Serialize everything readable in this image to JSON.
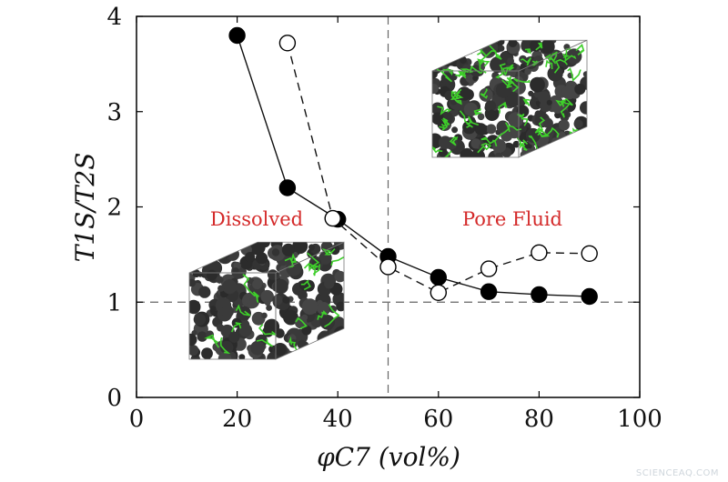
{
  "chart_data": {
    "type": "scatter",
    "xlabel": "φC7 (vol%)",
    "ylabel": "T1S/T2S",
    "xlim": [
      0,
      100
    ],
    "ylim": [
      0,
      4
    ],
    "xticks": [
      0,
      20,
      40,
      60,
      80,
      100
    ],
    "yticks": [
      0,
      1,
      2,
      3,
      4
    ],
    "grid": false,
    "reference_lines": [
      {
        "orientation": "horizontal",
        "value": 1,
        "style": "dashed"
      },
      {
        "orientation": "vertical",
        "value": 50,
        "style": "dashed"
      }
    ],
    "series": [
      {
        "marker": "filled-circle",
        "line": "solid",
        "x": [
          20,
          30,
          40,
          50,
          60,
          70,
          80,
          90
        ],
        "y": [
          3.8,
          2.2,
          1.87,
          1.48,
          1.26,
          1.11,
          1.08,
          1.06
        ]
      },
      {
        "marker": "open-circle",
        "line": "dashed",
        "x": [
          30,
          39,
          50,
          60,
          70,
          80,
          90
        ],
        "y": [
          3.72,
          1.88,
          1.37,
          1.1,
          1.35,
          1.52,
          1.51
        ]
      }
    ],
    "annotations": [
      {
        "text": "Dissolved",
        "color": "#d42a2a"
      },
      {
        "text": "Pore Fluid",
        "color": "#d42a2a"
      }
    ],
    "insets": [
      {
        "name": "dissolved-cube",
        "contents": "dark grey aggregate with sparse green chains"
      },
      {
        "name": "pore-fluid-cube",
        "contents": "dark grey aggregate with dense green chains"
      }
    ]
  },
  "watermark": "SCIENCEAQ.COM"
}
